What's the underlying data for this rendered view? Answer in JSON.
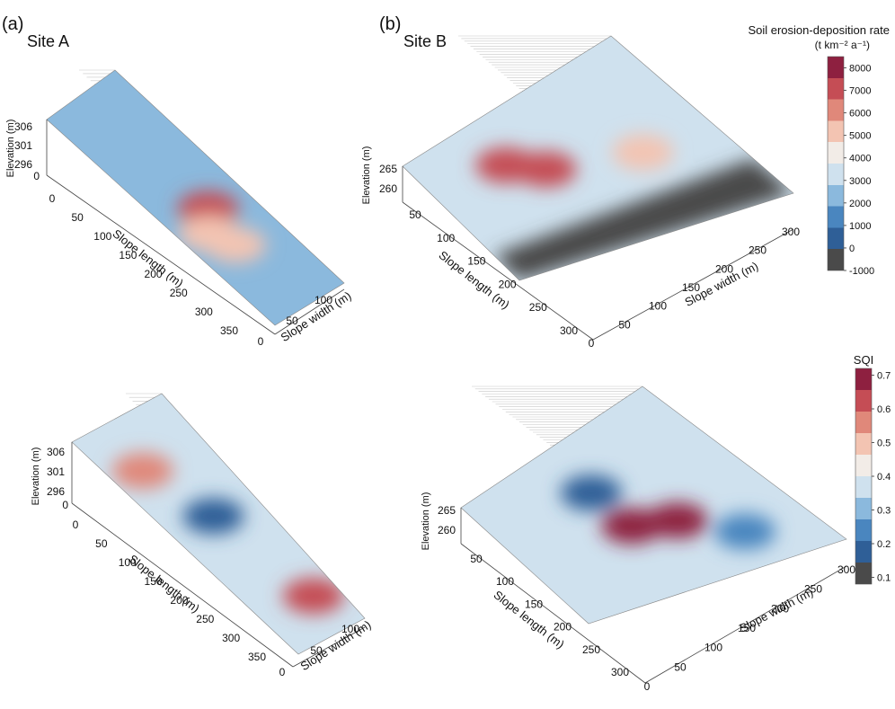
{
  "figure": {
    "panel_a_label": "(a)",
    "panel_b_label": "(b)",
    "site_a_title": "Site A",
    "site_b_title": "Site B"
  },
  "chart_data": [
    {
      "type": "heatmap",
      "variant": "3d-surface",
      "name": "Site A soil erosion-deposition rate",
      "title": "Site A",
      "zlabel": "Elevation (m)",
      "zticks": [
        "306",
        "301",
        "296"
      ],
      "xlabel": "Slope width (m)",
      "xticks": [
        "0",
        "50",
        "100"
      ],
      "ylabel": "Slope length (m)",
      "yticks": [
        "0",
        "50",
        "100",
        "150",
        "200",
        "250",
        "300",
        "350"
      ],
      "colorbar": "erosion",
      "hotspots": [
        {
          "u": 0.55,
          "v": 0.52,
          "value": 7200
        },
        {
          "u": 0.62,
          "v": 0.3,
          "value": 4900
        },
        {
          "u": 0.7,
          "v": 0.42,
          "value": 5200
        }
      ],
      "background_value": 2200
    },
    {
      "type": "heatmap",
      "variant": "3d-surface",
      "name": "Site B soil erosion-deposition rate",
      "title": "Site B",
      "zlabel": "Elevation (m)",
      "zticks": [
        "265",
        "260"
      ],
      "xlabel": "Slope width (m)",
      "xticks": [
        "0",
        "50",
        "100",
        "150",
        "200",
        "250",
        "300"
      ],
      "ylabel": "Slope length (m)",
      "yticks": [
        "50",
        "100",
        "150",
        "200",
        "250",
        "300"
      ],
      "colorbar": "erosion",
      "hotspots": [
        {
          "u": 0.3,
          "v": 0.3,
          "value": 6800
        },
        {
          "u": 0.42,
          "v": 0.4,
          "value": 7000
        },
        {
          "u": 0.55,
          "v": 0.72,
          "value": 5600
        }
      ],
      "low_band_value": -1000,
      "background_value": 2800
    },
    {
      "type": "heatmap",
      "variant": "3d-surface",
      "name": "Site A SQI",
      "zlabel": "Elevation (m)",
      "zticks": [
        "306",
        "301",
        "296"
      ],
      "xlabel": "Slope width (m)",
      "xticks": [
        "0",
        "50",
        "100"
      ],
      "ylabel": "Slope length (m)",
      "yticks": [
        "0",
        "50",
        "100",
        "150",
        "200",
        "250",
        "300",
        "350"
      ],
      "colorbar": "sqi",
      "hotspots": [
        {
          "u": 0.2,
          "v": 0.3,
          "value": 0.55
        },
        {
          "u": 0.85,
          "v": 0.7,
          "value": 0.62
        },
        {
          "u": 0.45,
          "v": 0.5,
          "value": 0.2
        }
      ],
      "background_value": 0.36
    },
    {
      "type": "heatmap",
      "variant": "3d-surface",
      "name": "Site B SQI",
      "zlabel": "Elevation (m)",
      "zticks": [
        "265",
        "260"
      ],
      "xlabel": "Slope width (m)",
      "xticks": [
        "0",
        "50",
        "100",
        "150",
        "200",
        "250",
        "300"
      ],
      "ylabel": "Slope length (m)",
      "yticks": [
        "50",
        "100",
        "150",
        "200",
        "250",
        "300"
      ],
      "colorbar": "sqi",
      "hotspots": [
        {
          "u": 0.55,
          "v": 0.45,
          "value": 0.66
        },
        {
          "u": 0.62,
          "v": 0.6,
          "value": 0.7
        },
        {
          "u": 0.3,
          "v": 0.45,
          "value": 0.18
        },
        {
          "u": 0.8,
          "v": 0.75,
          "value": 0.22
        }
      ],
      "background_value": 0.36
    }
  ],
  "colorbars": {
    "erosion": {
      "title": "Soil erosion-deposition rate",
      "unit": "(t km⁻² a⁻¹)",
      "ticks": [
        "8000",
        "7000",
        "6000",
        "5000",
        "4000",
        "3000",
        "2000",
        "1000",
        "0",
        "-1000"
      ],
      "min": -1000,
      "max": 8500,
      "colors": [
        "#4a4a4a",
        "#2f5f97",
        "#4a86bf",
        "#8bb9dd",
        "#cfe1ee",
        "#f2ece7",
        "#f3c4b2",
        "#e0887a",
        "#c54d55",
        "#8e2040"
      ]
    },
    "sqi": {
      "title": "SQI",
      "ticks": [
        "0.7",
        "0.6",
        "0.5",
        "0.4",
        "0.3",
        "0.2",
        "0.1"
      ],
      "min": 0.08,
      "max": 0.72,
      "colors": [
        "#4a4a4a",
        "#2f5f97",
        "#4a86bf",
        "#8bb9dd",
        "#cfe1ee",
        "#f2ece7",
        "#f3c4b2",
        "#e0887a",
        "#c54d55",
        "#8e2040"
      ]
    }
  }
}
